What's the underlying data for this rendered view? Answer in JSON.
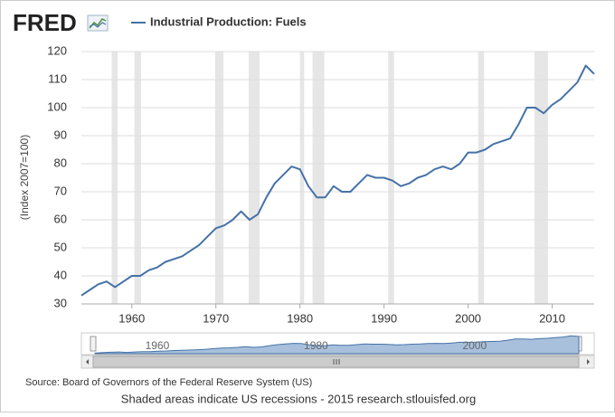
{
  "chart_data": {
    "type": "line",
    "logo": "FRED",
    "ylabel": "(Index 2007=100)",
    "source": "Source: Board of Governors of the Federal Reserve System (US)",
    "note": "Shaded areas indicate US recessions - 2015 research.stlouisfed.org",
    "x": [
      1954,
      1955,
      1956,
      1957,
      1958,
      1959,
      1960,
      1961,
      1962,
      1963,
      1964,
      1965,
      1966,
      1967,
      1968,
      1969,
      1970,
      1971,
      1972,
      1973,
      1974,
      1975,
      1976,
      1977,
      1978,
      1979,
      1980,
      1981,
      1982,
      1983,
      1984,
      1985,
      1986,
      1987,
      1988,
      1989,
      1990,
      1991,
      1992,
      1993,
      1994,
      1995,
      1996,
      1997,
      1998,
      1999,
      2000,
      2001,
      2002,
      2003,
      2004,
      2005,
      2006,
      2007,
      2008,
      2009,
      2010,
      2011,
      2012,
      2013,
      2014,
      2015
    ],
    "series": [
      {
        "name": "Industrial Production: Fuels",
        "color": "#4572a7",
        "values": [
          33,
          35,
          37,
          38,
          36,
          38,
          40,
          40,
          42,
          43,
          45,
          46,
          47,
          49,
          51,
          54,
          57,
          58,
          60,
          63,
          60,
          62,
          68,
          73,
          76,
          79,
          78,
          72,
          68,
          68,
          72,
          70,
          70,
          73,
          76,
          75,
          75,
          74,
          72,
          73,
          75,
          76,
          78,
          79,
          78,
          80,
          84,
          84,
          85,
          87,
          88,
          89,
          94,
          100,
          100,
          98,
          101,
          103,
          106,
          109,
          115,
          112
        ]
      }
    ],
    "recessions": [
      [
        1957.6,
        1958.3
      ],
      [
        1960.3,
        1961.1
      ],
      [
        1969.9,
        1970.9
      ],
      [
        1973.9,
        1975.2
      ],
      [
        1980.0,
        1980.5
      ],
      [
        1981.5,
        1982.9
      ],
      [
        1990.5,
        1991.2
      ],
      [
        2001.2,
        2001.9
      ],
      [
        2007.9,
        2009.5
      ]
    ],
    "recession_color": "#e6e6e6",
    "xlim": [
      1954,
      2015
    ],
    "ylim": [
      30,
      120
    ],
    "xticks": [
      1960,
      1970,
      1980,
      1990,
      2000,
      2010
    ],
    "yticks": [
      30,
      40,
      50,
      60,
      70,
      80,
      90,
      100,
      110,
      120
    ],
    "navigator_ticks": [
      1960,
      1980,
      2000
    ],
    "grid": true
  }
}
